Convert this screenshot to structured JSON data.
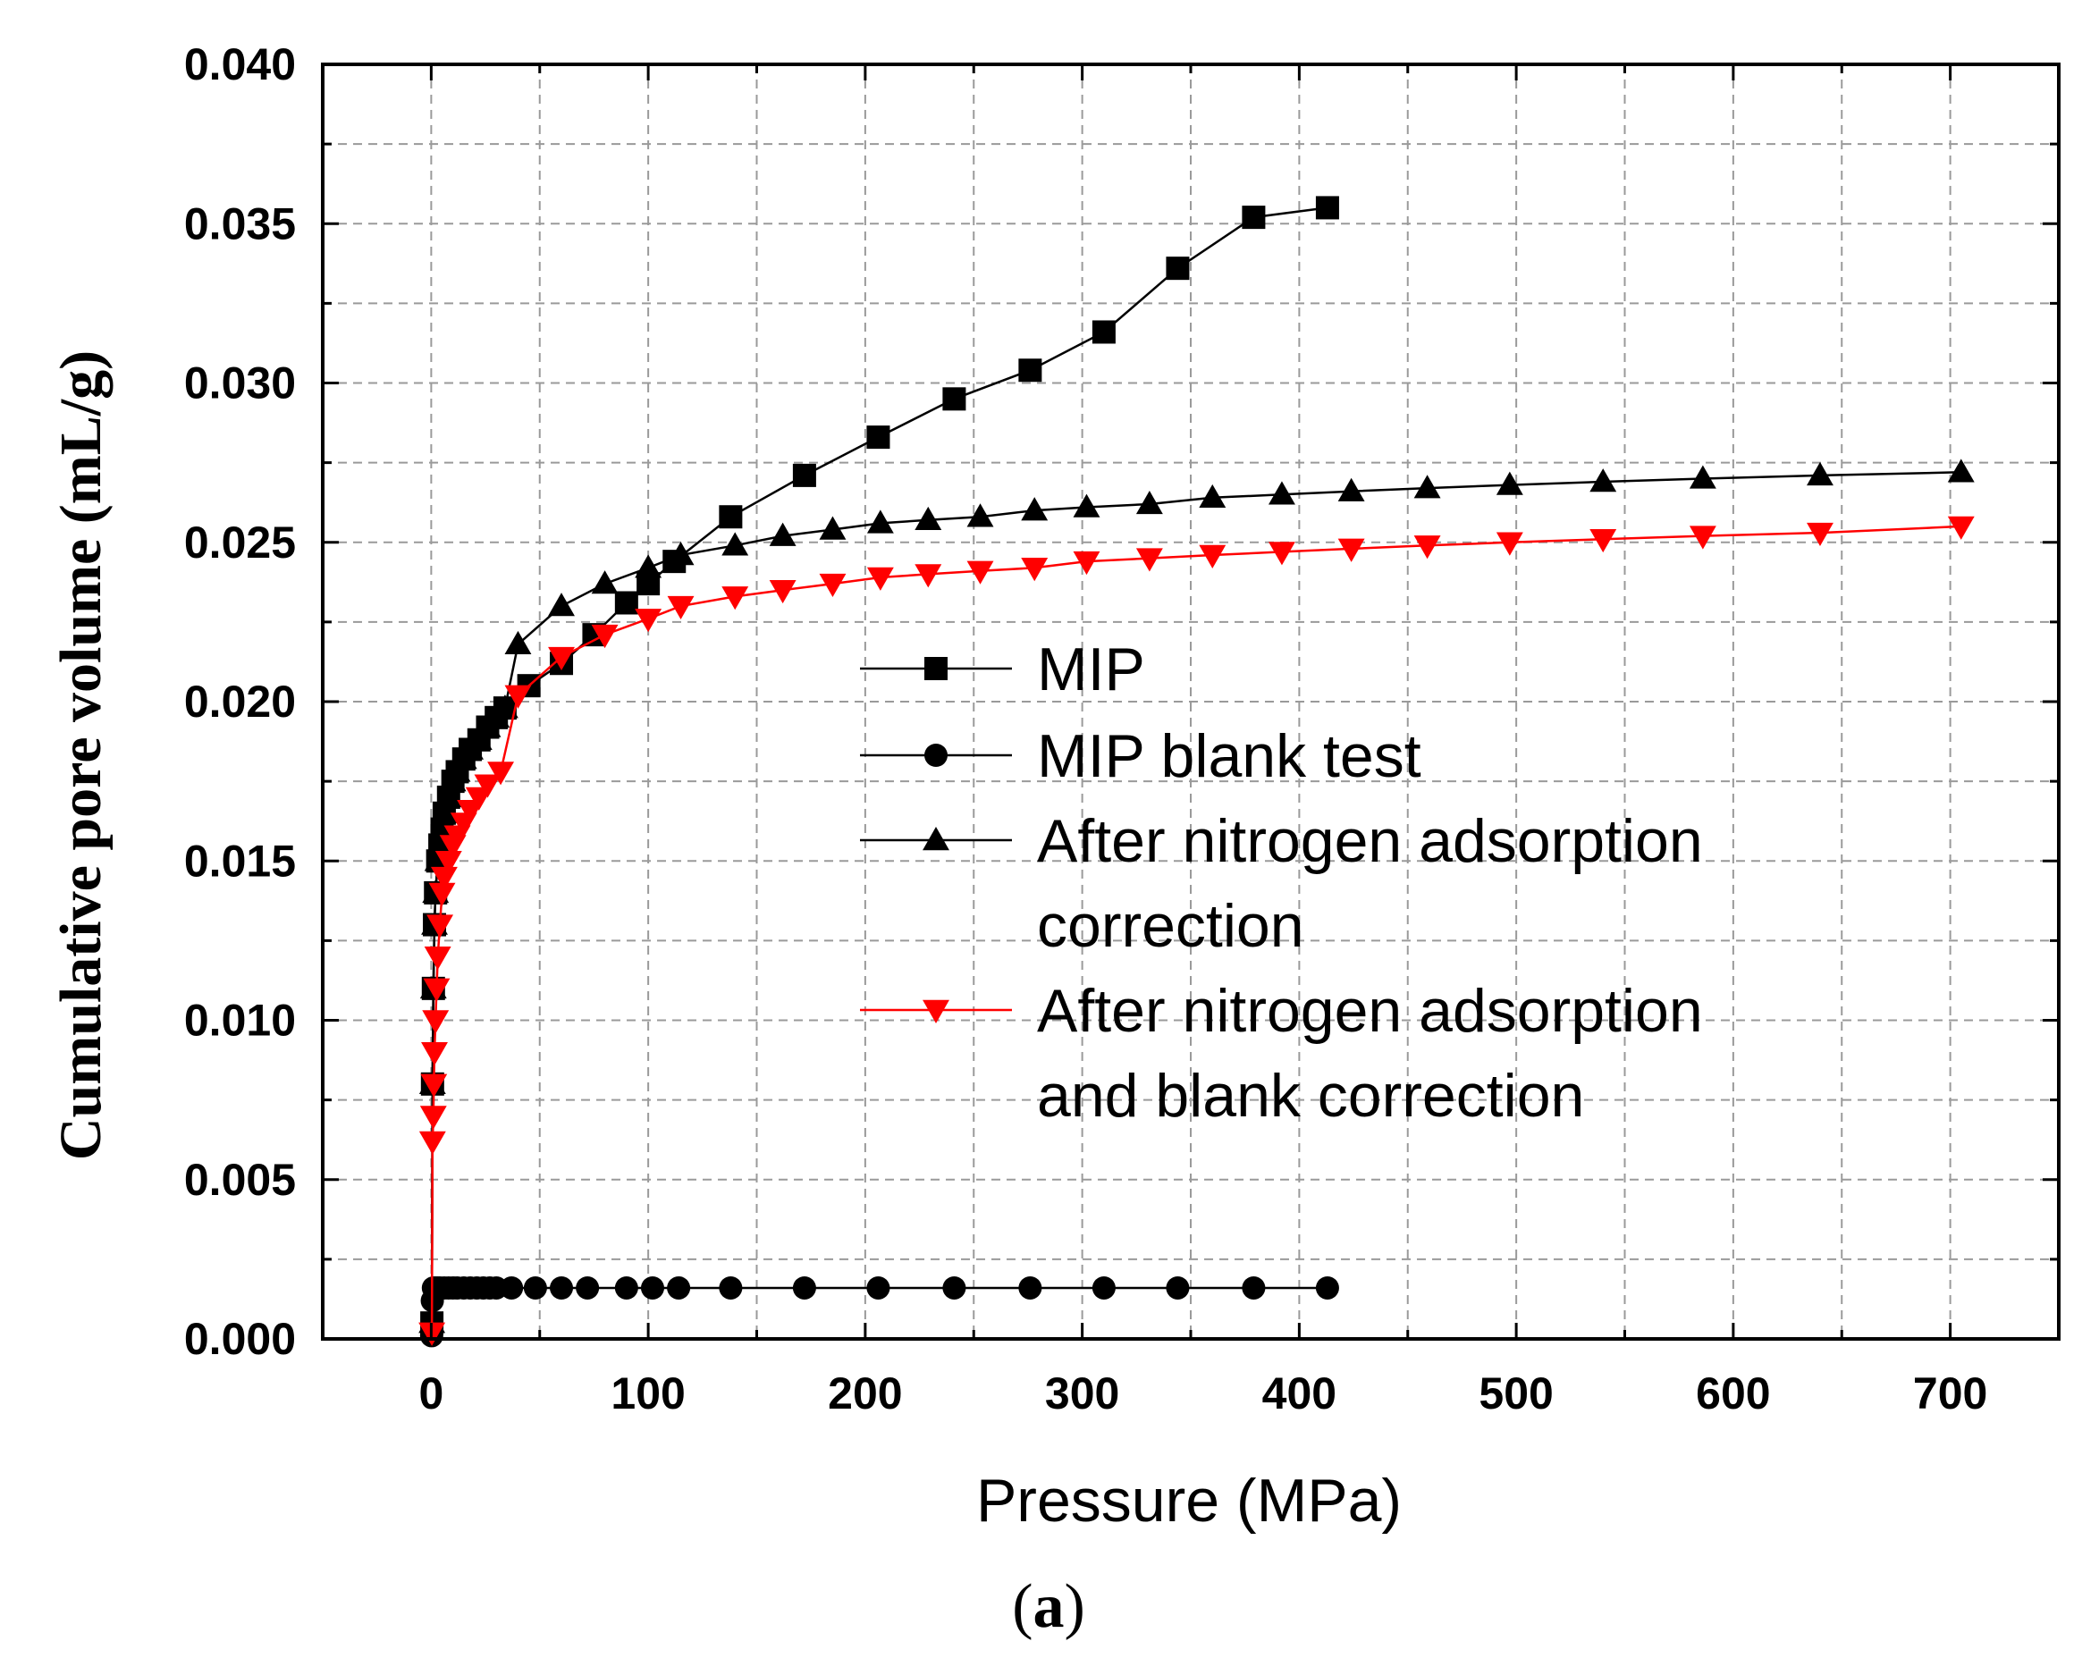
{
  "chart_data": {
    "type": "line",
    "xlabel": "Pressure (MPa)",
    "ylabel": "Cumulative pore volume (mL/g)",
    "xlim": [
      -50,
      750
    ],
    "ylim": [
      0,
      0.04
    ],
    "xticks": [
      "0",
      "100",
      "200",
      "300",
      "400",
      "500",
      "600",
      "700"
    ],
    "xtick_values": [
      0,
      100,
      200,
      300,
      400,
      500,
      600,
      700
    ],
    "yticks": [
      "0.000",
      "0.005",
      "0.010",
      "0.015",
      "0.020",
      "0.025",
      "0.030",
      "0.035",
      "0.040"
    ],
    "ytick_values": [
      0,
      0.005,
      0.01,
      0.015,
      0.02,
      0.025,
      0.03,
      0.035,
      0.04
    ],
    "grid": true,
    "legend_position": "center-right",
    "caption_open": "(",
    "caption_letter": "a",
    "caption_close": ")",
    "series": [
      {
        "name": "MIP",
        "marker": "square",
        "color": "#000000",
        "x": [
          0.3,
          0.6,
          1,
          1.5,
          2,
          3,
          4,
          5,
          6,
          8,
          10,
          12,
          15,
          18,
          22,
          26,
          30,
          34,
          45,
          60,
          75,
          90,
          100,
          112,
          138,
          172,
          206,
          241,
          276,
          310,
          344,
          379,
          413
        ],
        "y": [
          0.0005,
          0.008,
          0.011,
          0.013,
          0.014,
          0.015,
          0.0155,
          0.016,
          0.0165,
          0.017,
          0.0175,
          0.0178,
          0.0182,
          0.0185,
          0.0188,
          0.0192,
          0.0195,
          0.0198,
          0.0205,
          0.0212,
          0.0221,
          0.0231,
          0.0237,
          0.0244,
          0.0258,
          0.0271,
          0.0283,
          0.0295,
          0.0304,
          0.0316,
          0.0336,
          0.0352,
          0.0355
        ]
      },
      {
        "name": "MIP blank test",
        "marker": "circle",
        "color": "#000000",
        "x": [
          0.2,
          0.5,
          1,
          2,
          3,
          4,
          6,
          8,
          10,
          12,
          15,
          18,
          21,
          24,
          27,
          30,
          37,
          48,
          60,
          72,
          90,
          102,
          114,
          138,
          172,
          206,
          241,
          276,
          310,
          344,
          379,
          413
        ],
        "y": [
          0.0001,
          0.0012,
          0.0016,
          0.0016,
          0.0016,
          0.0016,
          0.0016,
          0.0016,
          0.0016,
          0.0016,
          0.0016,
          0.0016,
          0.0016,
          0.0016,
          0.0016,
          0.0016,
          0.0016,
          0.0016,
          0.0016,
          0.0016,
          0.0016,
          0.0016,
          0.0016,
          0.0016,
          0.0016,
          0.0016,
          0.0016,
          0.0016,
          0.0016,
          0.0016,
          0.0016,
          0.0016
        ]
      },
      {
        "name": "After nitrogen adsorption correction",
        "marker": "triangle-up",
        "color": "#000000",
        "x": [
          0.3,
          0.6,
          1,
          1.5,
          2,
          3,
          4,
          5,
          6,
          8,
          10,
          12,
          15,
          18,
          22,
          26,
          30,
          34,
          40,
          60,
          80,
          100,
          115,
          140,
          162,
          185,
          207,
          229,
          253,
          278,
          302,
          331,
          360,
          392,
          424,
          459,
          497,
          540,
          586,
          640,
          705
        ],
        "y": [
          0.0005,
          0.008,
          0.011,
          0.013,
          0.014,
          0.015,
          0.0155,
          0.016,
          0.0165,
          0.017,
          0.0175,
          0.0178,
          0.0182,
          0.0185,
          0.0188,
          0.0192,
          0.0195,
          0.0198,
          0.0218,
          0.023,
          0.0237,
          0.0242,
          0.0246,
          0.0249,
          0.0252,
          0.0254,
          0.0256,
          0.0257,
          0.0258,
          0.026,
          0.0261,
          0.0262,
          0.0264,
          0.0265,
          0.0266,
          0.0267,
          0.0268,
          0.0269,
          0.027,
          0.0271,
          0.0272
        ]
      },
      {
        "name": "After nitrogen adsorption and blank correction",
        "marker": "triangle-down",
        "color": "#ff0000",
        "x": [
          0.3,
          0.6,
          1,
          1.2,
          1.5,
          2,
          2.5,
          3,
          4,
          5,
          6,
          8,
          10,
          12,
          15,
          18,
          22,
          26,
          32,
          40,
          60,
          80,
          100,
          115,
          140,
          162,
          185,
          207,
          229,
          253,
          278,
          302,
          331,
          360,
          392,
          424,
          459,
          497,
          540,
          586,
          640,
          705
        ],
        "y": [
          0.0002,
          0.0062,
          0.007,
          0.008,
          0.009,
          0.01,
          0.011,
          0.012,
          0.013,
          0.014,
          0.0145,
          0.015,
          0.0155,
          0.0158,
          0.0162,
          0.0166,
          0.017,
          0.0174,
          0.0178,
          0.0202,
          0.0214,
          0.0221,
          0.0226,
          0.023,
          0.0233,
          0.0235,
          0.0237,
          0.0239,
          0.024,
          0.0241,
          0.0242,
          0.0244,
          0.0245,
          0.0246,
          0.0247,
          0.0248,
          0.0249,
          0.025,
          0.0251,
          0.0252,
          0.0253,
          0.0255
        ]
      }
    ],
    "legend": [
      {
        "series": 0,
        "lines": [
          "MIP"
        ]
      },
      {
        "series": 1,
        "lines": [
          "MIP blank test"
        ]
      },
      {
        "series": 2,
        "lines": [
          "After nitrogen adsorption",
          "correction"
        ]
      },
      {
        "series": 3,
        "lines": [
          "After nitrogen adsorption",
          "and blank correction"
        ]
      }
    ]
  }
}
